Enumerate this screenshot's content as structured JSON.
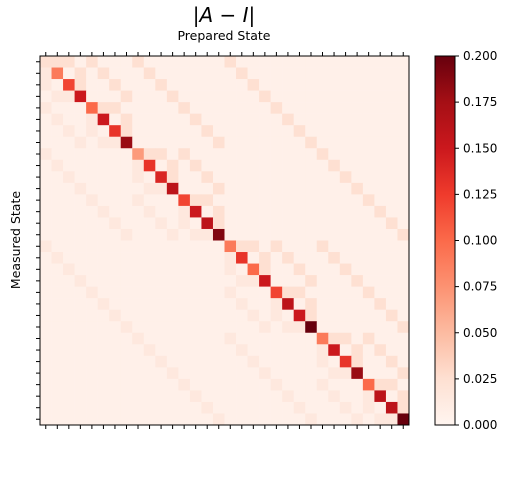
{
  "chart_data": {
    "type": "heatmap",
    "title": "|A − I|",
    "subtitle": "Prepared State",
    "xlabel": "",
    "ylabel": "Measured State",
    "size": 32,
    "colorscale": "Reds",
    "vmin": 0.0,
    "vmax": 0.2,
    "colorbar_ticks": [
      "0.000",
      "0.025",
      "0.050",
      "0.075",
      "0.100",
      "0.125",
      "0.150",
      "0.175",
      "0.200"
    ],
    "diagonal": [
      0.025,
      0.09,
      0.12,
      0.15,
      0.1,
      0.15,
      0.13,
      0.18,
      0.07,
      0.13,
      0.14,
      0.16,
      0.12,
      0.15,
      0.16,
      0.19,
      0.09,
      0.13,
      0.1,
      0.15,
      0.12,
      0.16,
      0.15,
      0.2,
      0.09,
      0.15,
      0.13,
      0.18,
      0.1,
      0.16,
      0.16,
      0.21
    ],
    "off_diagonal_level": 0.025,
    "background_level": 0.006
  }
}
